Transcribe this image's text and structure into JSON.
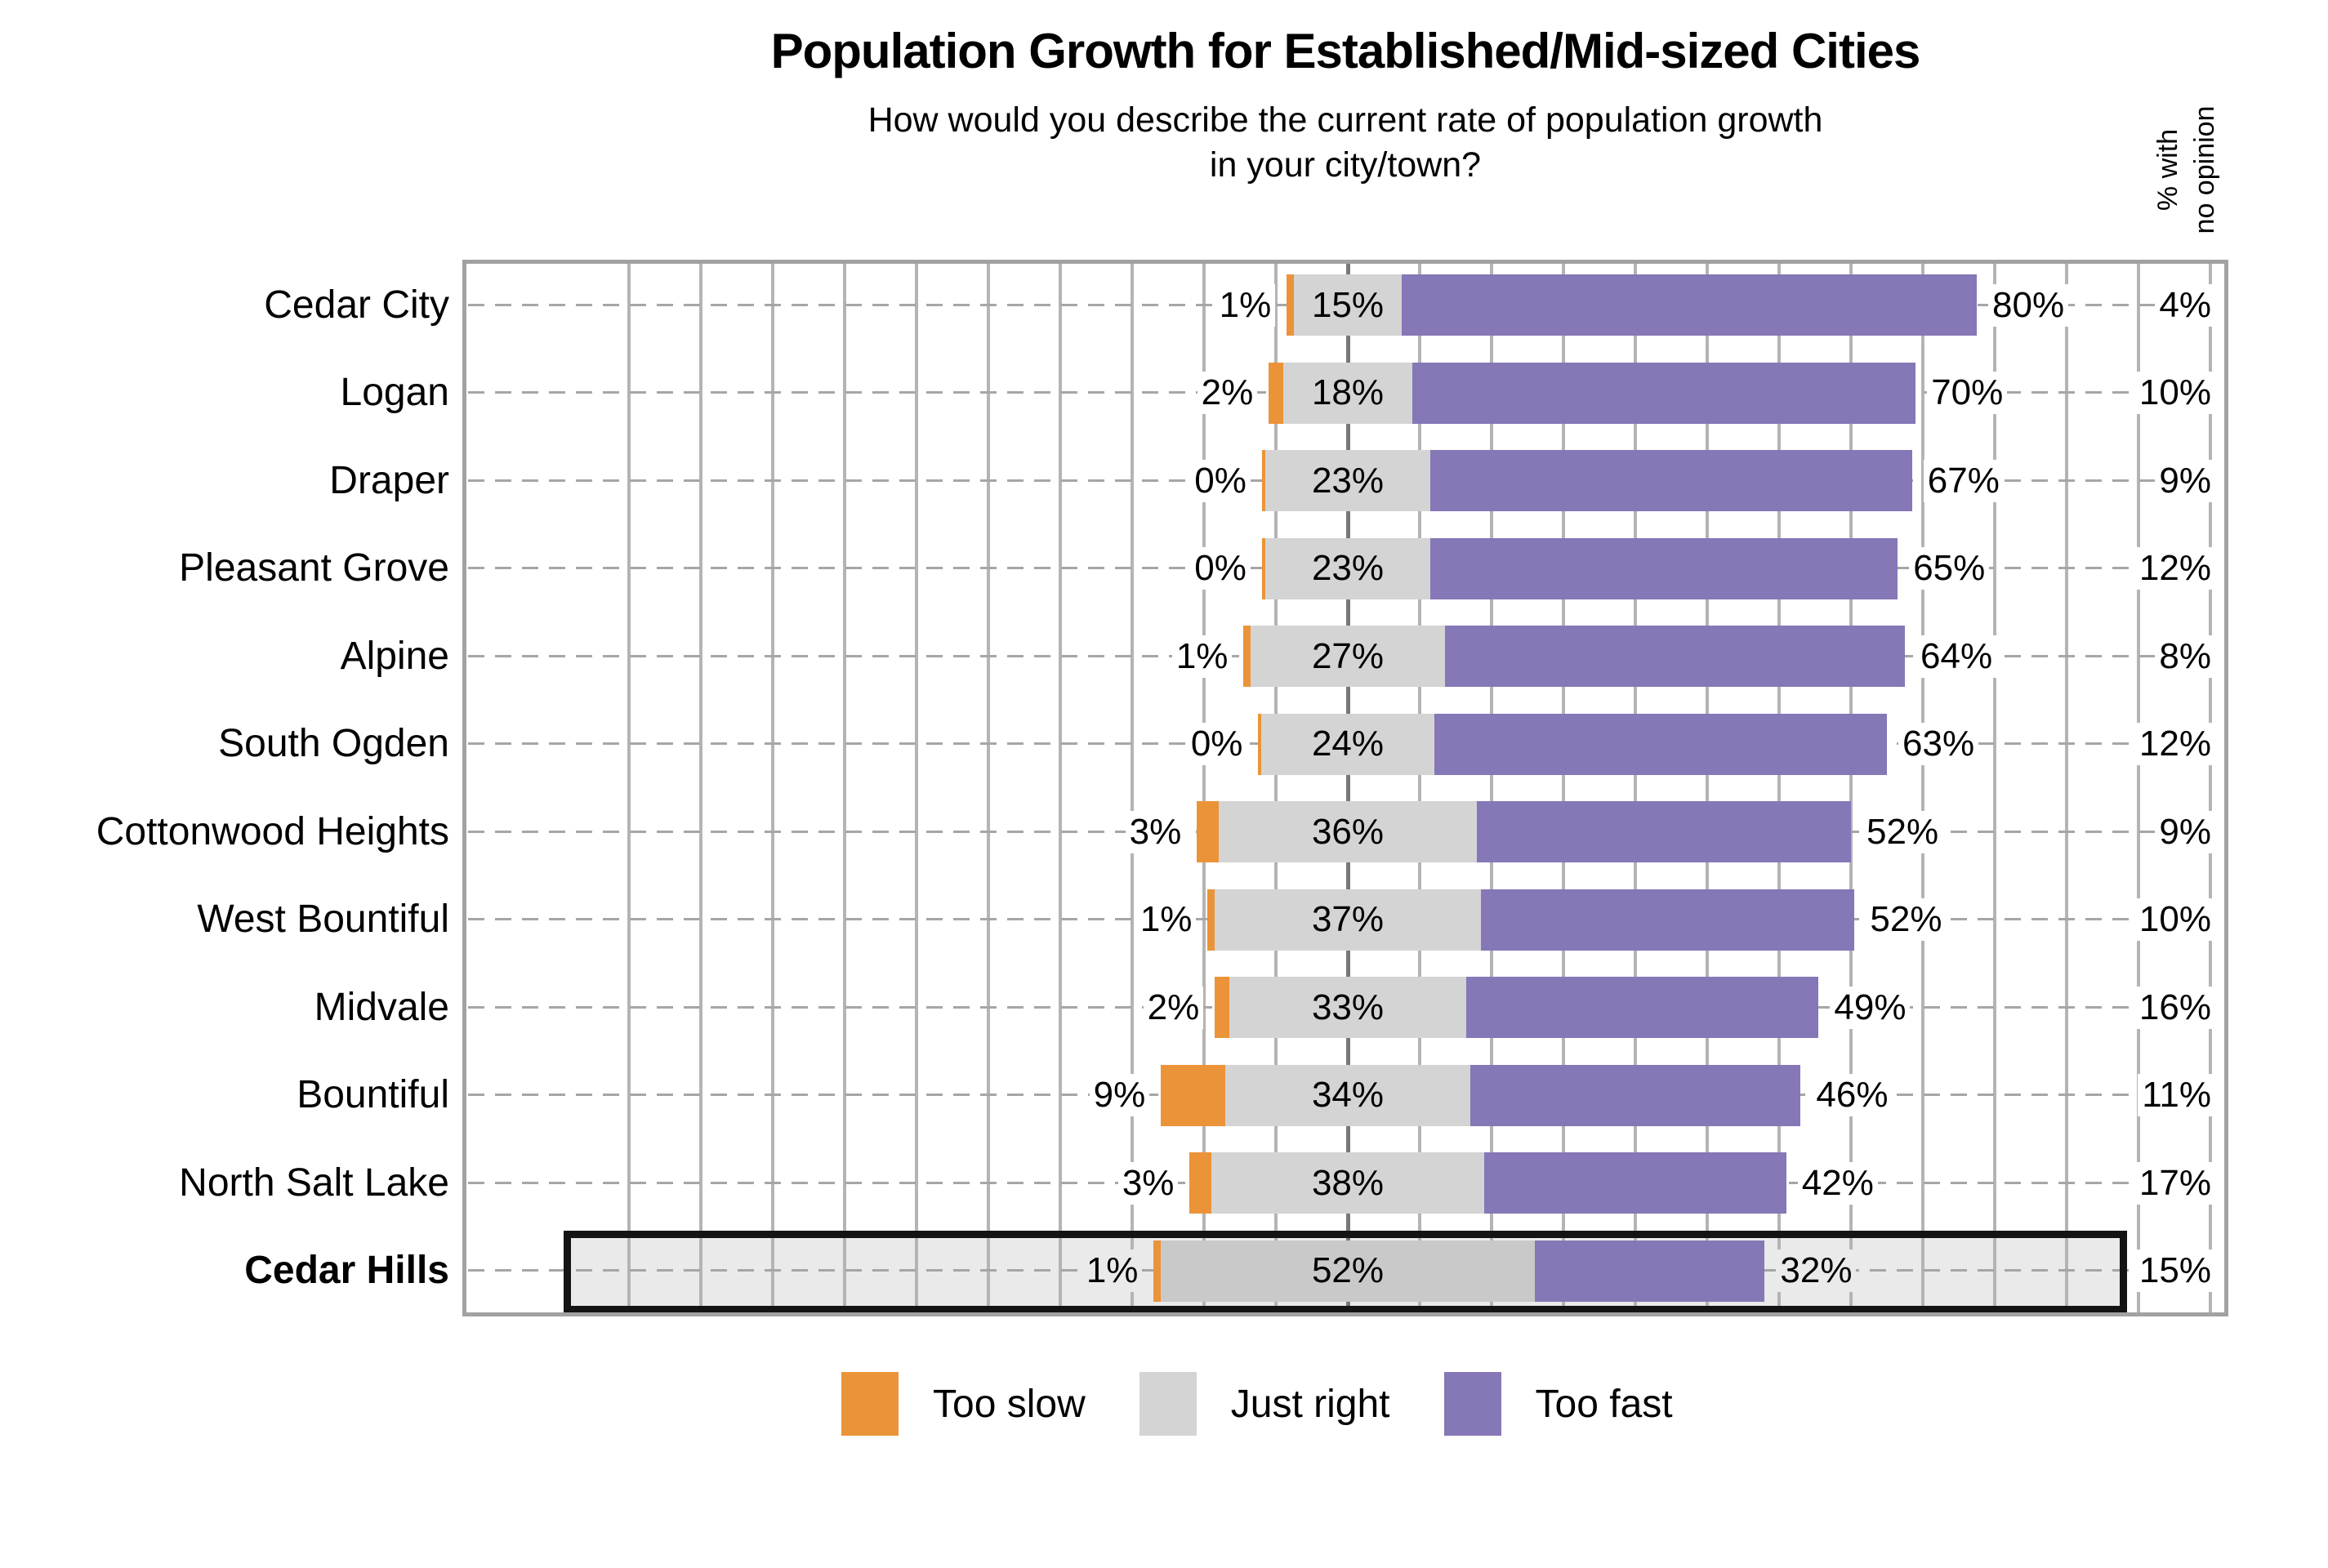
{
  "chart_data": {
    "type": "bar",
    "orientation": "horizontal",
    "stacked": true,
    "diverging": true,
    "title": "Population Growth for Established/Mid-sized Cities",
    "subtitle_lines": [
      "How would you describe the current rate of population growth",
      "in your city/town?"
    ],
    "categories": [
      "Cedar City",
      "Logan",
      "Draper",
      "Pleasant Grove",
      "Alpine",
      "South Ogden",
      "Cottonwood Heights",
      "West Bountiful",
      "Midvale",
      "Bountiful",
      "North Salt Lake",
      "Cedar Hills"
    ],
    "series": [
      {
        "name": "Too slow",
        "color": "#EB9338",
        "values": [
          1,
          2,
          0,
          0,
          1,
          0,
          3,
          1,
          2,
          9,
          3,
          1
        ]
      },
      {
        "name": "Just right",
        "color": "#D4D4D4",
        "values": [
          15,
          18,
          23,
          23,
          27,
          24,
          36,
          37,
          33,
          34,
          38,
          52
        ]
      },
      {
        "name": "Too fast",
        "color": "#8677B7",
        "values": [
          80,
          70,
          67,
          65,
          64,
          63,
          52,
          52,
          49,
          46,
          42,
          32
        ]
      }
    ],
    "no_opinion": {
      "header_lines": [
        "% with",
        "no opinion"
      ],
      "values": [
        4,
        10,
        9,
        12,
        8,
        12,
        9,
        10,
        16,
        11,
        17,
        15
      ]
    },
    "value_suffix": "%",
    "highlight_category": "Cedar Hills",
    "legend_position": "bottom",
    "axis": {
      "gridlines": true,
      "gridline_interval_pct": 10
    }
  },
  "colors": {
    "background": "#FFFFFF",
    "highlight_fill": "#EAEAEA",
    "highlight_just_right": "#C9C9C9",
    "highlight_border": "#141414",
    "plot_border": "#A2A2A2",
    "gridline": "#B4B4B4",
    "axis_centerline": "#787878",
    "leader_dots": "#A6A6A6",
    "text": "#000000"
  }
}
